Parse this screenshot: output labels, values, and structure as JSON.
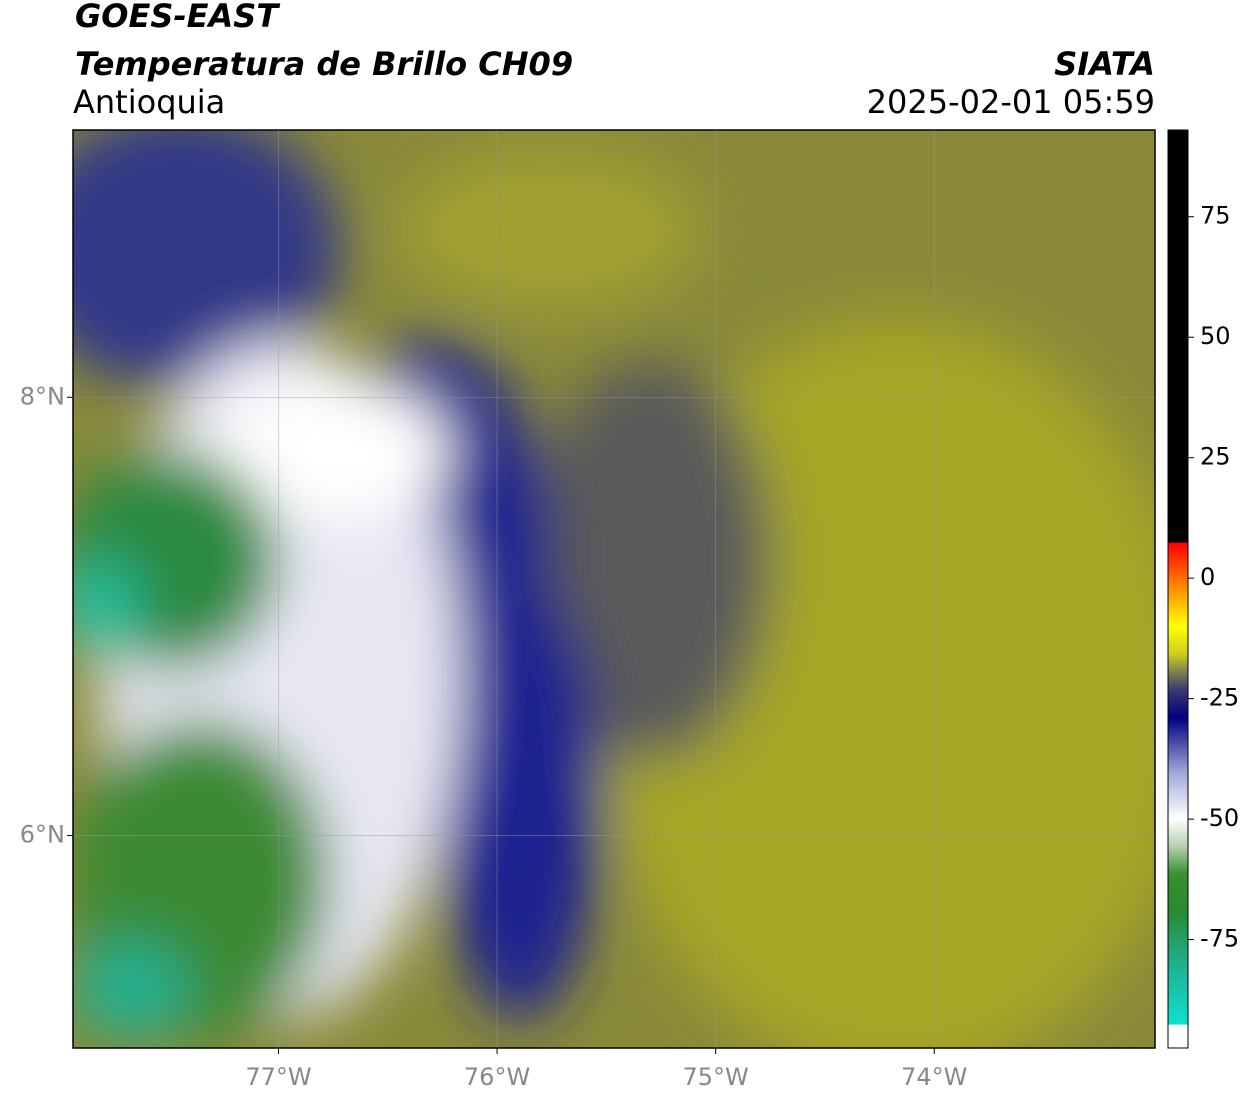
{
  "header": {
    "title": "GOES-EAST",
    "subtitle": "Temperatura de Brillo CH09",
    "region": "Antioquia",
    "source": "SIATA",
    "datetime": "2025-02-01 05:59"
  },
  "map": {
    "xlim": [
      -77.94,
      -72.99
    ],
    "ylim": [
      5.03,
      9.22
    ],
    "xticks": [
      {
        "value": -77,
        "label": "77°W"
      },
      {
        "value": -76,
        "label": "76°W"
      },
      {
        "value": -75,
        "label": "75°W"
      },
      {
        "value": -74,
        "label": "74°W"
      }
    ],
    "yticks": [
      {
        "value": 8,
        "label": "8°N"
      },
      {
        "value": 6,
        "label": "6°N"
      }
    ]
  },
  "colorbar": {
    "lim": [
      -97.5,
      93
    ],
    "ticks": [
      75,
      50,
      25,
      0,
      -25,
      -50,
      -75
    ]
  }
}
